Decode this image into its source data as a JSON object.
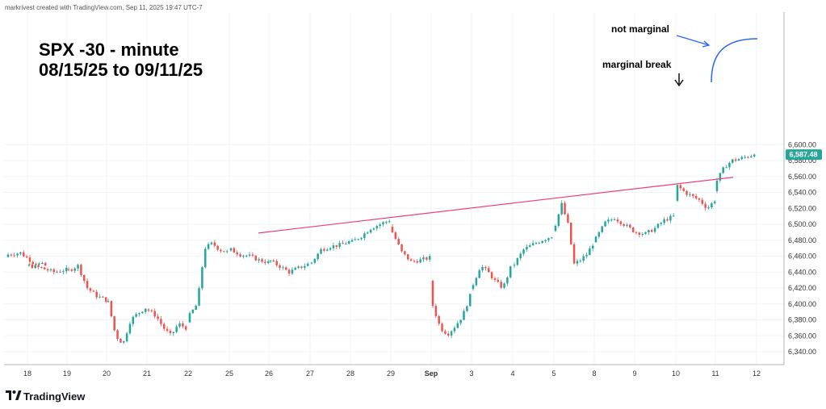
{
  "header": {
    "credit": "markrivest created with TradingView.com, Sep 11, 2025 19:47 UTC-7"
  },
  "brand": {
    "name": "TradingView"
  },
  "colors": {
    "up": "#26a69a",
    "down": "#ef5350",
    "trendline": "#ec407a",
    "arrow": "#2962ff",
    "price_badge": "#26a69a"
  },
  "chart_data": {
    "type": "candlestick",
    "title_lines": [
      "SPX -30 - minute",
      "08/15/25 to 09/11/25"
    ],
    "ylim": [
      6330,
      6610
    ],
    "y_ticks": [
      6340,
      6360,
      6380,
      6400,
      6420,
      6440,
      6460,
      6480,
      6500,
      6520,
      6540,
      6560,
      6580,
      6600
    ],
    "y_tick_labels": [
      "6,340.00",
      "6,360.00",
      "6,380.00",
      "6,400.00",
      "6,420.00",
      "6,440.00",
      "6,460.00",
      "6,480.00",
      "6,500.00",
      "6,520.00",
      "6,540.00",
      "6,560.00",
      "6,580.00",
      "6,600.00"
    ],
    "x_labels": [
      "18",
      "19",
      "20",
      "21",
      "22",
      "25",
      "26",
      "27",
      "28",
      "29",
      "Sep",
      "3",
      "4",
      "5",
      "8",
      "9",
      "10",
      "11",
      "12"
    ],
    "x_label_bold": [
      "Sep"
    ],
    "last_price": 6587.48,
    "last_price_label": "6,587.48",
    "trendline": {
      "start": {
        "day": "25",
        "value": 6489
      },
      "end": {
        "day": "11",
        "value": 6559
      }
    },
    "annotations": [
      {
        "text": "not marginal"
      },
      {
        "text": "marginal break"
      }
    ],
    "sessions": [
      {
        "day": "15",
        "anchors": [
          6462,
          6464,
          6452,
          6448
        ]
      },
      {
        "day": "18",
        "anchors": [
          6448,
          6445,
          6440,
          6443
        ]
      },
      {
        "day": "19",
        "anchors": [
          6442,
          6448,
          6420,
          6410,
          6405
        ]
      },
      {
        "day": "20",
        "anchors": [
          6402,
          6360,
          6350,
          6380,
          6388,
          6395
        ]
      },
      {
        "day": "21",
        "anchors": [
          6392,
          6385,
          6370,
          6360,
          6375,
          6370
        ]
      },
      {
        "day": "22",
        "anchors": [
          6386,
          6400,
          6470,
          6476,
          6468,
          6465
        ]
      },
      {
        "day": "25",
        "anchors": [
          6468,
          6462,
          6460,
          6455,
          6452
        ]
      },
      {
        "day": "26",
        "anchors": [
          6454,
          6447,
          6440,
          6445,
          6450
        ]
      },
      {
        "day": "27",
        "anchors": [
          6452,
          6468,
          6472,
          6474,
          6478
        ]
      },
      {
        "day": "28",
        "anchors": [
          6478,
          6485,
          6495,
          6500,
          6505
        ]
      },
      {
        "day": "29",
        "anchors": [
          6490,
          6465,
          6453,
          6455,
          6458
        ]
      },
      {
        "day": "Sep",
        "anchors": [
          6398,
          6370,
          6362,
          6372,
          6385,
          6410
        ]
      },
      {
        "day": "3",
        "anchors": [
          6425,
          6448,
          6440,
          6428,
          6420,
          6445
        ]
      },
      {
        "day": "4",
        "anchors": [
          6450,
          6468,
          6475,
          6480,
          6485
        ]
      },
      {
        "day": "5",
        "anchors": [
          6500,
          6525,
          6500,
          6450,
          6455,
          6462,
          6475
        ]
      },
      {
        "day": "8",
        "anchors": [
          6482,
          6502,
          6508,
          6500,
          6492
        ]
      },
      {
        "day": "9",
        "anchors": [
          6490,
          6488,
          6495,
          6505,
          6510
        ]
      },
      {
        "day": "10",
        "anchors": [
          6548,
          6540,
          6535,
          6530,
          6520,
          6530
        ]
      },
      {
        "day": "11",
        "anchors": [
          6555,
          6572,
          6580,
          6582,
          6585,
          6587.48
        ]
      }
    ]
  }
}
